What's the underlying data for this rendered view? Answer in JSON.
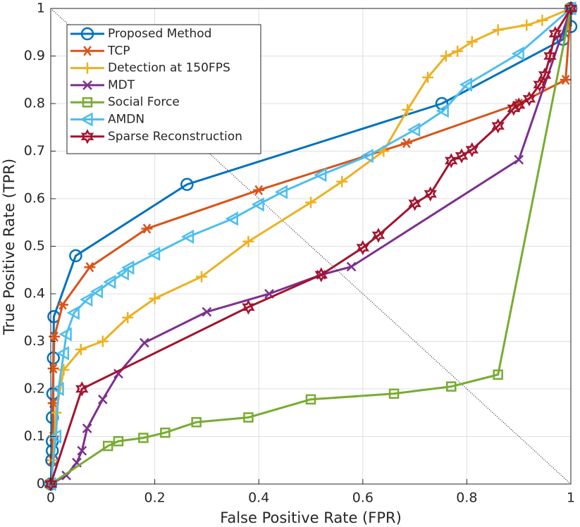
{
  "chart_data": {
    "type": "line",
    "xlabel": "False Positive Rate (FPR)",
    "ylabel": "True Positive Rate (TPR)",
    "xlim": [
      0,
      1
    ],
    "ylim": [
      0,
      1
    ],
    "xticks": [
      0,
      0.2,
      0.4,
      0.6,
      0.8,
      1
    ],
    "yticks": [
      0,
      0.1,
      0.2,
      0.3,
      0.4,
      0.5,
      0.6,
      0.7,
      0.8,
      0.9,
      1
    ],
    "grid": true,
    "legend": "northwest",
    "series": [
      {
        "name": "Proposed Method",
        "color": "#0072bd",
        "marker": "circle",
        "x": [
          0,
          0.002,
          0.003,
          0.003,
          0.003,
          0.004,
          0.005,
          0.006,
          0.048,
          0.262,
          0.752,
          0.985,
          1,
          1
        ],
        "values": [
          0,
          0.05,
          0.07,
          0.09,
          0.14,
          0.19,
          0.265,
          0.352,
          0.48,
          0.63,
          0.8,
          0.935,
          1,
          0.962
        ]
      },
      {
        "name": "TCP",
        "color": "#d95319",
        "marker": "asterisk",
        "x": [
          0,
          0.003,
          0.005,
          0.005,
          0.005,
          0.007,
          0.023,
          0.075,
          0.185,
          0.4,
          0.684,
          0.9,
          0.99,
          1
        ],
        "values": [
          0,
          0.05,
          0.1,
          0.17,
          0.243,
          0.31,
          0.377,
          0.456,
          0.537,
          0.618,
          0.717,
          0.8,
          0.85,
          1
        ]
      },
      {
        "name": "Detection at 150FPS",
        "color": "#edb120",
        "marker": "plus",
        "x": [
          0,
          0.005,
          0.01,
          0.025,
          0.058,
          0.1,
          0.148,
          0.2,
          0.29,
          0.38,
          0.5,
          0.56,
          0.64,
          0.686,
          0.725,
          0.76,
          0.782,
          0.81,
          0.86,
          0.915,
          0.945,
          1
        ],
        "values": [
          0,
          0.05,
          0.15,
          0.24,
          0.283,
          0.3,
          0.35,
          0.39,
          0.436,
          0.51,
          0.592,
          0.636,
          0.7,
          0.787,
          0.855,
          0.9,
          0.91,
          0.93,
          0.955,
          0.965,
          0.975,
          1
        ]
      },
      {
        "name": "MDT",
        "color": "#7e2f8e",
        "marker": "x",
        "x": [
          0,
          0.03,
          0.05,
          0.06,
          0.07,
          0.1,
          0.13,
          0.18,
          0.3,
          0.42,
          0.52,
          0.578,
          0.9,
          1
        ],
        "values": [
          0,
          0.018,
          0.045,
          0.07,
          0.117,
          0.178,
          0.232,
          0.297,
          0.362,
          0.4,
          0.44,
          0.457,
          0.682,
          1
        ]
      },
      {
        "name": "Social Force",
        "color": "#77ac30",
        "marker": "square",
        "x": [
          0,
          0.11,
          0.13,
          0.178,
          0.22,
          0.28,
          0.38,
          0.5,
          0.66,
          0.77,
          0.86,
          1
        ],
        "values": [
          0,
          0.08,
          0.09,
          0.097,
          0.108,
          0.13,
          0.14,
          0.178,
          0.19,
          0.205,
          0.23,
          1
        ]
      },
      {
        "name": "AMDN",
        "color": "#4dbeee",
        "marker": "triangle-left",
        "x": [
          0,
          0.01,
          0.015,
          0.025,
          0.03,
          0.045,
          0.07,
          0.09,
          0.115,
          0.14,
          0.15,
          0.2,
          0.265,
          0.35,
          0.4,
          0.445,
          0.52,
          0.61,
          0.7,
          0.755,
          0.8,
          0.9,
          1
        ],
        "values": [
          0,
          0.1,
          0.2,
          0.275,
          0.315,
          0.36,
          0.388,
          0.405,
          0.425,
          0.443,
          0.455,
          0.484,
          0.52,
          0.558,
          0.588,
          0.614,
          0.65,
          0.69,
          0.745,
          0.785,
          0.84,
          0.905,
          1
        ]
      },
      {
        "name": "Sparse Reconstruction",
        "color": "#a2142f",
        "marker": "hexagram",
        "x": [
          0,
          0.06,
          0.38,
          0.52,
          0.6,
          0.63,
          0.7,
          0.73,
          0.77,
          0.79,
          0.81,
          0.86,
          0.89,
          0.9,
          0.92,
          0.94,
          0.95,
          0.96,
          0.97,
          1
        ],
        "values": [
          0,
          0.2,
          0.372,
          0.44,
          0.497,
          0.523,
          0.59,
          0.61,
          0.68,
          0.69,
          0.703,
          0.753,
          0.79,
          0.797,
          0.81,
          0.84,
          0.86,
          0.9,
          0.947,
          1
        ]
      }
    ]
  }
}
